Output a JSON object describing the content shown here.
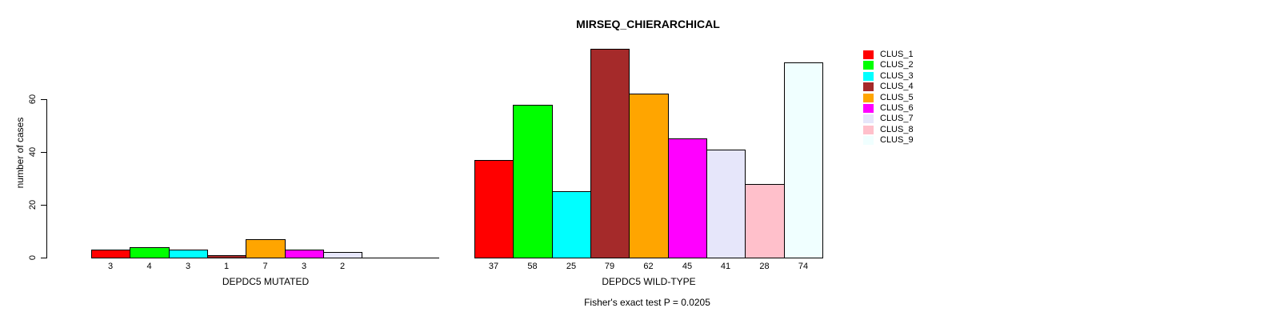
{
  "chart_data": {
    "type": "bar",
    "title": "MIRSEQ_CHIERARCHICAL",
    "ylabel": "number of cases",
    "xlabel": "",
    "ylim": [
      0,
      80
    ],
    "yticks": [
      0,
      20,
      40,
      60
    ],
    "grid": false,
    "legend_position": "right",
    "bar_value_labels_shown": true,
    "categories": [
      "CLUS_1",
      "CLUS_2",
      "CLUS_3",
      "CLUS_4",
      "CLUS_5",
      "CLUS_6",
      "CLUS_7",
      "CLUS_8",
      "CLUS_9"
    ],
    "colors": [
      "#FF0000",
      "#00FF00",
      "#00FFFF",
      "#A52A2A",
      "#FFA500",
      "#FF00FF",
      "#E6E6FA",
      "#FFC0CB",
      "#F0FFFF"
    ],
    "series": [
      {
        "name": "DEPDC5 MUTATED",
        "values": [
          3,
          4,
          3,
          1,
          7,
          3,
          2,
          null,
          null
        ]
      },
      {
        "name": "DEPDC5 WILD-TYPE",
        "values": [
          37,
          58,
          25,
          79,
          62,
          45,
          41,
          28,
          74
        ]
      }
    ],
    "annotation": "Fisher's exact test P = 0.0205"
  }
}
